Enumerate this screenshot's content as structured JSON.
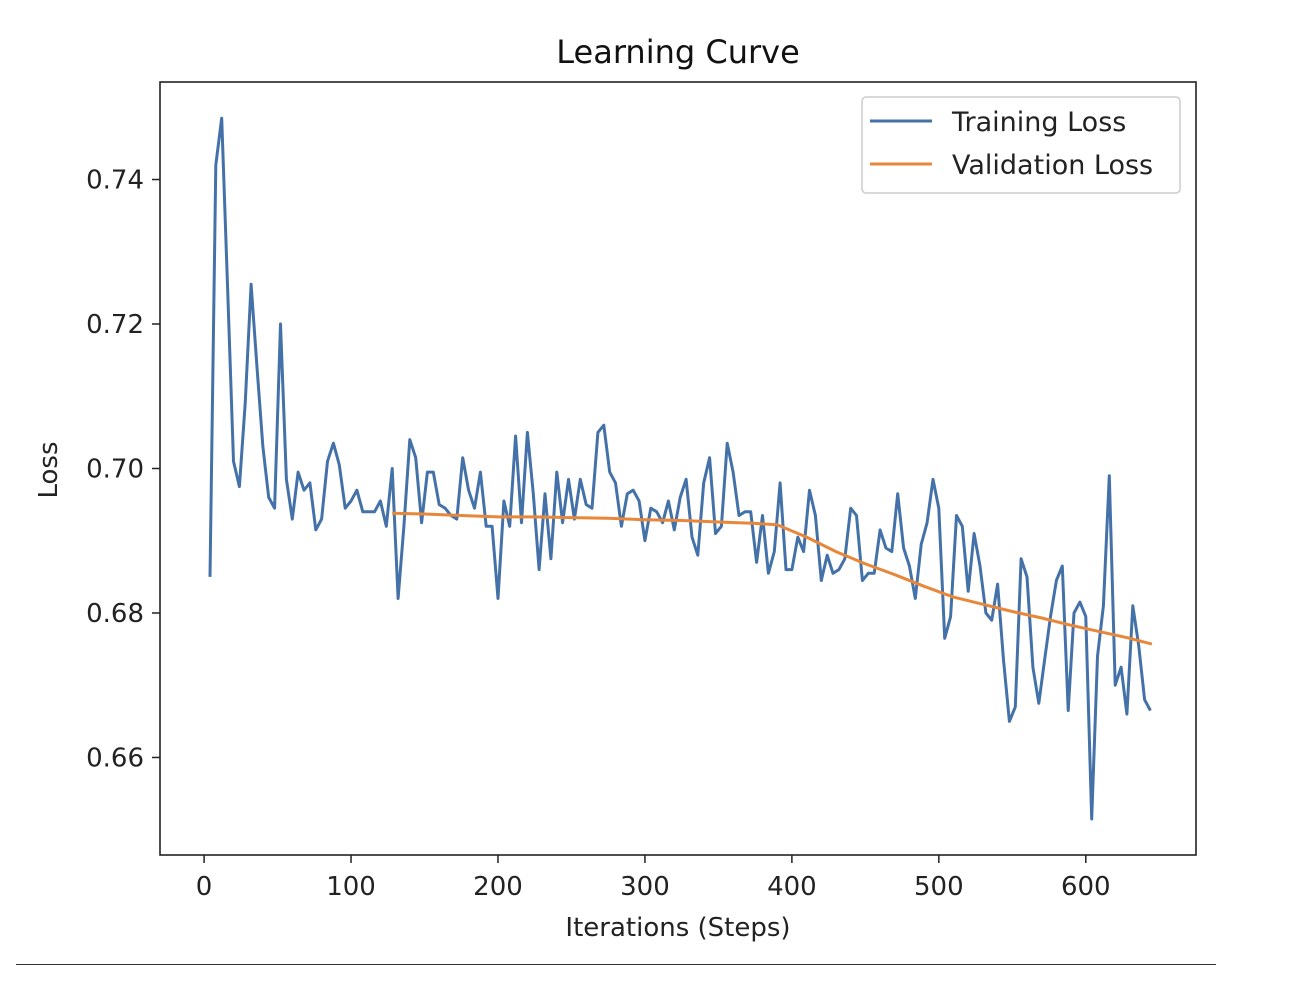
{
  "chart_data": {
    "type": "line",
    "title": "Learning Curve",
    "xlabel": "Iterations (Steps)",
    "ylabel": "Loss",
    "xlim": [
      -30,
      675
    ],
    "ylim": [
      0.6465,
      0.7535
    ],
    "xticks": [
      0,
      100,
      200,
      300,
      400,
      500,
      600
    ],
    "yticks": [
      0.66,
      0.68,
      0.7,
      0.72,
      0.74
    ],
    "xtick_labels": [
      "0",
      "100",
      "200",
      "300",
      "400",
      "500",
      "600"
    ],
    "ytick_labels": [
      "0.66",
      "0.68",
      "0.70",
      "0.72",
      "0.74"
    ],
    "grid": false,
    "legend_position": "top-right",
    "series": [
      {
        "name": "Training Loss",
        "color": "#4472a8",
        "points": [
          [
            4,
            0.685
          ],
          [
            8,
            0.742
          ],
          [
            12,
            0.7485
          ],
          [
            16,
            0.725
          ],
          [
            20,
            0.701
          ],
          [
            24,
            0.6975
          ],
          [
            28,
            0.709
          ],
          [
            32,
            0.7255
          ],
          [
            36,
            0.714
          ],
          [
            40,
            0.703
          ],
          [
            44,
            0.696
          ],
          [
            48,
            0.6945
          ],
          [
            52,
            0.72
          ],
          [
            56,
            0.6985
          ],
          [
            60,
            0.693
          ],
          [
            64,
            0.6995
          ],
          [
            68,
            0.697
          ],
          [
            72,
            0.698
          ],
          [
            76,
            0.6915
          ],
          [
            80,
            0.693
          ],
          [
            84,
            0.701
          ],
          [
            88,
            0.7035
          ],
          [
            92,
            0.7005
          ],
          [
            96,
            0.6945
          ],
          [
            100,
            0.6955
          ],
          [
            104,
            0.697
          ],
          [
            108,
            0.694
          ],
          [
            112,
            0.694
          ],
          [
            116,
            0.694
          ],
          [
            120,
            0.6955
          ],
          [
            124,
            0.692
          ],
          [
            128,
            0.7
          ],
          [
            132,
            0.682
          ],
          [
            136,
            0.692
          ],
          [
            140,
            0.704
          ],
          [
            144,
            0.7015
          ],
          [
            148,
            0.6925
          ],
          [
            152,
            0.6995
          ],
          [
            156,
            0.6995
          ],
          [
            160,
            0.695
          ],
          [
            164,
            0.6945
          ],
          [
            168,
            0.6935
          ],
          [
            172,
            0.693
          ],
          [
            176,
            0.7015
          ],
          [
            180,
            0.697
          ],
          [
            184,
            0.6945
          ],
          [
            188,
            0.6995
          ],
          [
            192,
            0.692
          ],
          [
            196,
            0.692
          ],
          [
            200,
            0.682
          ],
          [
            204,
            0.6955
          ],
          [
            208,
            0.692
          ],
          [
            212,
            0.7045
          ],
          [
            216,
            0.6925
          ],
          [
            220,
            0.705
          ],
          [
            224,
            0.6965
          ],
          [
            228,
            0.686
          ],
          [
            232,
            0.6965
          ],
          [
            236,
            0.6875
          ],
          [
            240,
            0.6995
          ],
          [
            244,
            0.6925
          ],
          [
            248,
            0.6985
          ],
          [
            252,
            0.693
          ],
          [
            256,
            0.6985
          ],
          [
            260,
            0.695
          ],
          [
            264,
            0.6945
          ],
          [
            268,
            0.705
          ],
          [
            272,
            0.706
          ],
          [
            276,
            0.6995
          ],
          [
            280,
            0.698
          ],
          [
            284,
            0.692
          ],
          [
            288,
            0.6965
          ],
          [
            292,
            0.697
          ],
          [
            296,
            0.6955
          ],
          [
            300,
            0.69
          ],
          [
            304,
            0.6945
          ],
          [
            308,
            0.694
          ],
          [
            312,
            0.6925
          ],
          [
            316,
            0.6955
          ],
          [
            320,
            0.6915
          ],
          [
            324,
            0.696
          ],
          [
            328,
            0.6985
          ],
          [
            332,
            0.6905
          ],
          [
            336,
            0.688
          ],
          [
            340,
            0.698
          ],
          [
            344,
            0.7015
          ],
          [
            348,
            0.691
          ],
          [
            352,
            0.692
          ],
          [
            356,
            0.7035
          ],
          [
            360,
            0.6995
          ],
          [
            364,
            0.6935
          ],
          [
            368,
            0.694
          ],
          [
            372,
            0.694
          ],
          [
            376,
            0.687
          ],
          [
            380,
            0.6935
          ],
          [
            384,
            0.6855
          ],
          [
            388,
            0.6885
          ],
          [
            392,
            0.698
          ],
          [
            396,
            0.686
          ],
          [
            400,
            0.686
          ],
          [
            404,
            0.6905
          ],
          [
            408,
            0.6885
          ],
          [
            412,
            0.697
          ],
          [
            416,
            0.6935
          ],
          [
            420,
            0.6845
          ],
          [
            424,
            0.688
          ],
          [
            428,
            0.6855
          ],
          [
            432,
            0.686
          ],
          [
            436,
            0.6875
          ],
          [
            440,
            0.6945
          ],
          [
            444,
            0.6935
          ],
          [
            448,
            0.6845
          ],
          [
            452,
            0.6855
          ],
          [
            456,
            0.6855
          ],
          [
            460,
            0.6915
          ],
          [
            464,
            0.689
          ],
          [
            468,
            0.6885
          ],
          [
            472,
            0.6965
          ],
          [
            476,
            0.689
          ],
          [
            480,
            0.6865
          ],
          [
            484,
            0.682
          ],
          [
            488,
            0.6895
          ],
          [
            492,
            0.6925
          ],
          [
            496,
            0.6985
          ],
          [
            500,
            0.6945
          ],
          [
            504,
            0.6765
          ],
          [
            508,
            0.6795
          ],
          [
            512,
            0.6935
          ],
          [
            516,
            0.692
          ],
          [
            520,
            0.683
          ],
          [
            524,
            0.691
          ],
          [
            528,
            0.6865
          ],
          [
            532,
            0.68
          ],
          [
            536,
            0.679
          ],
          [
            540,
            0.684
          ],
          [
            544,
            0.6735
          ],
          [
            548,
            0.665
          ],
          [
            552,
            0.667
          ],
          [
            556,
            0.6875
          ],
          [
            560,
            0.685
          ],
          [
            564,
            0.6725
          ],
          [
            568,
            0.6675
          ],
          [
            572,
            0.6735
          ],
          [
            576,
            0.6795
          ],
          [
            580,
            0.6845
          ],
          [
            584,
            0.6865
          ],
          [
            588,
            0.6665
          ],
          [
            592,
            0.68
          ],
          [
            596,
            0.6815
          ],
          [
            600,
            0.6795
          ],
          [
            604,
            0.6515
          ],
          [
            608,
            0.674
          ],
          [
            612,
            0.681
          ],
          [
            616,
            0.699
          ],
          [
            620,
            0.67
          ],
          [
            624,
            0.6725
          ],
          [
            628,
            0.666
          ],
          [
            632,
            0.681
          ],
          [
            636,
            0.6755
          ],
          [
            640,
            0.668
          ],
          [
            644,
            0.6665
          ]
        ]
      },
      {
        "name": "Validation Loss",
        "color": "#e8873a",
        "points": [
          [
            128,
            0.6938
          ],
          [
            150,
            0.6937
          ],
          [
            175,
            0.6935
          ],
          [
            200,
            0.6933
          ],
          [
            225,
            0.6933
          ],
          [
            250,
            0.6932
          ],
          [
            275,
            0.6931
          ],
          [
            300,
            0.6929
          ],
          [
            325,
            0.6928
          ],
          [
            350,
            0.6926
          ],
          [
            375,
            0.6924
          ],
          [
            390,
            0.6922
          ],
          [
            410,
            0.6905
          ],
          [
            430,
            0.6885
          ],
          [
            450,
            0.6868
          ],
          [
            470,
            0.6853
          ],
          [
            490,
            0.6837
          ],
          [
            510,
            0.6822
          ],
          [
            530,
            0.6812
          ],
          [
            550,
            0.6802
          ],
          [
            570,
            0.6793
          ],
          [
            590,
            0.6783
          ],
          [
            610,
            0.6774
          ],
          [
            630,
            0.6765
          ],
          [
            645,
            0.6757
          ]
        ]
      }
    ]
  }
}
